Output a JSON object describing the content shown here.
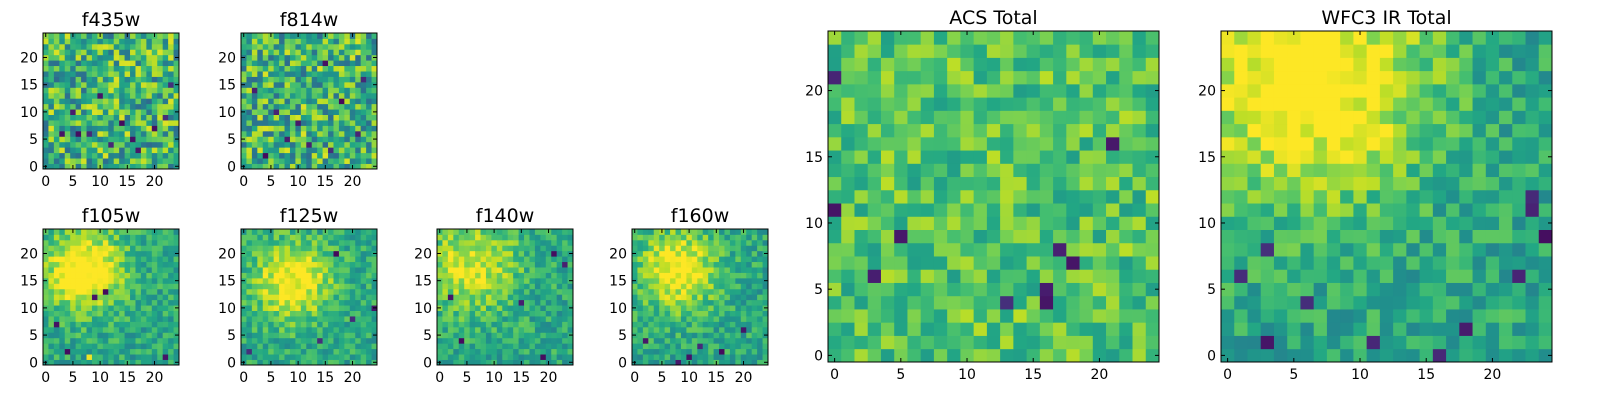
{
  "chart_data": [
    {
      "type": "heatmap",
      "title": "f435w",
      "shape": [
        25,
        25
      ],
      "x_ticks": [
        "0",
        "5",
        "10",
        "15",
        "20"
      ],
      "y_ticks": [
        "0",
        "5",
        "10",
        "15",
        "20"
      ],
      "colormap": "viridis",
      "style": "noisy",
      "seed": 11,
      "dark_cells": [
        [
          3,
          6
        ],
        [
          6,
          6
        ],
        [
          8,
          6
        ],
        [
          12,
          4
        ],
        [
          14,
          8
        ],
        [
          16,
          5
        ],
        [
          20,
          7
        ],
        [
          22,
          9
        ],
        [
          5,
          10
        ],
        [
          10,
          13
        ],
        [
          17,
          3
        ],
        [
          23,
          15
        ]
      ]
    },
    {
      "type": "heatmap",
      "title": "f814w",
      "shape": [
        25,
        25
      ],
      "x_ticks": [
        "0",
        "5",
        "10",
        "15",
        "20"
      ],
      "y_ticks": [
        "0",
        "5",
        "10",
        "15",
        "20"
      ],
      "colormap": "viridis",
      "style": "noisy",
      "seed": 23,
      "dark_cells": [
        [
          4,
          2
        ],
        [
          8,
          5
        ],
        [
          12,
          4
        ],
        [
          16,
          3
        ],
        [
          21,
          6
        ],
        [
          6,
          10
        ],
        [
          15,
          19
        ],
        [
          18,
          12
        ],
        [
          10,
          8
        ],
        [
          2,
          14
        ],
        [
          22,
          16
        ]
      ]
    },
    {
      "type": "heatmap",
      "title": "f105w",
      "shape": [
        25,
        25
      ],
      "x_ticks": [
        "0",
        "5",
        "10",
        "15",
        "20"
      ],
      "y_ticks": [
        "0",
        "5",
        "10",
        "15",
        "20"
      ],
      "colormap": "viridis",
      "style": "blob",
      "seed": 37,
      "blob": {
        "center": [
          7,
          17
        ],
        "spread": 5,
        "strength": 0.55
      },
      "dark_cells": [
        [
          2,
          7
        ],
        [
          9,
          12
        ],
        [
          11,
          13
        ],
        [
          22,
          1
        ],
        [
          4,
          2
        ]
      ],
      "bright_cells": [
        [
          8,
          1
        ]
      ]
    },
    {
      "type": "heatmap",
      "title": "f125w",
      "shape": [
        25,
        25
      ],
      "x_ticks": [
        "0",
        "5",
        "10",
        "15",
        "20"
      ],
      "y_ticks": [
        "0",
        "5",
        "10",
        "15",
        "20"
      ],
      "colormap": "viridis",
      "style": "blob",
      "seed": 41,
      "blob": {
        "center": [
          9,
          15
        ],
        "spread": 5,
        "strength": 0.45
      },
      "dark_cells": [
        [
          17,
          20
        ],
        [
          24,
          10
        ],
        [
          1,
          2
        ],
        [
          14,
          4
        ],
        [
          20,
          8
        ]
      ]
    },
    {
      "type": "heatmap",
      "title": "f140w",
      "shape": [
        25,
        25
      ],
      "x_ticks": [
        "0",
        "5",
        "10",
        "15",
        "20"
      ],
      "y_ticks": [
        "0",
        "5",
        "10",
        "15",
        "20"
      ],
      "colormap": "viridis",
      "style": "blob",
      "seed": 53,
      "blob": {
        "center": [
          6,
          18
        ],
        "spread": 6,
        "strength": 0.35
      },
      "dark_cells": [
        [
          21,
          20
        ],
        [
          23,
          18
        ],
        [
          4,
          4
        ],
        [
          15,
          11
        ],
        [
          19,
          1
        ],
        [
          2,
          12
        ]
      ]
    },
    {
      "type": "heatmap",
      "title": "f160w",
      "shape": [
        25,
        25
      ],
      "x_ticks": [
        "0",
        "5",
        "10",
        "15",
        "20"
      ],
      "y_ticks": [
        "0",
        "5",
        "10",
        "15",
        "20"
      ],
      "colormap": "viridis",
      "style": "blob",
      "seed": 67,
      "blob": {
        "center": [
          8,
          17
        ],
        "spread": 5,
        "strength": 0.45
      },
      "dark_cells": [
        [
          8,
          0
        ],
        [
          10,
          1
        ],
        [
          12,
          3
        ],
        [
          2,
          4
        ],
        [
          16,
          2
        ],
        [
          20,
          6
        ]
      ]
    },
    {
      "type": "heatmap",
      "title": "ACS Total",
      "shape": [
        25,
        25
      ],
      "x_ticks": [
        "0",
        "5",
        "10",
        "15",
        "20"
      ],
      "y_ticks": [
        "0",
        "5",
        "10",
        "15",
        "20"
      ],
      "colormap": "viridis",
      "style": "smooth",
      "seed": 79,
      "dark_cells": [
        [
          0,
          11
        ],
        [
          3,
          6
        ],
        [
          5,
          9
        ],
        [
          16,
          4
        ],
        [
          16,
          5
        ],
        [
          17,
          8
        ],
        [
          18,
          7
        ],
        [
          0,
          21
        ],
        [
          21,
          16
        ],
        [
          13,
          4
        ]
      ]
    },
    {
      "type": "heatmap",
      "title": "WFC3 IR Total",
      "shape": [
        25,
        25
      ],
      "x_ticks": [
        "0",
        "5",
        "10",
        "15",
        "20"
      ],
      "y_ticks": [
        "0",
        "5",
        "10",
        "15",
        "20"
      ],
      "colormap": "viridis",
      "style": "blob",
      "seed": 97,
      "blob": {
        "center": [
          6,
          21
        ],
        "spread": 6,
        "strength": 0.55
      },
      "dark_cells": [
        [
          3,
          8
        ],
        [
          6,
          4
        ],
        [
          11,
          1
        ],
        [
          16,
          0
        ],
        [
          23,
          12
        ],
        [
          23,
          11
        ],
        [
          24,
          9
        ],
        [
          22,
          6
        ],
        [
          1,
          6
        ],
        [
          3,
          1
        ],
        [
          18,
          2
        ]
      ]
    }
  ]
}
